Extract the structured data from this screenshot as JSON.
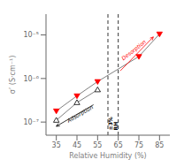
{
  "chart_data": {
    "type": "line",
    "xlabel": "Relative Humidity (%)",
    "ylabel": "σ’ (S·cm⁻¹)",
    "log": "y",
    "grid": false,
    "xlim": [
      30,
      90
    ],
    "ylim": [
      5e-08,
      3e-05
    ],
    "xticks": [
      35,
      45,
      55,
      65,
      75,
      85
    ],
    "yticks": [
      {
        "value": 1e-07,
        "label": "10⁻⁷"
      },
      {
        "value": 1e-06,
        "label": "10⁻⁶"
      },
      {
        "value": 1e-05,
        "label": "10⁻⁵"
      }
    ],
    "series": [
      {
        "x": [
          35,
          45,
          55
        ],
        "values": [
          1.1e-07,
          2.8e-07,
          5.5e-07
        ],
        "color": "black",
        "marker": "triangle-up-open"
      },
      {
        "x": [
          35,
          45,
          55,
          75,
          85
        ],
        "values": [
          1.8e-07,
          4e-07,
          8.5e-07,
          3.2e-06,
          1.05e-05
        ],
        "color": "red",
        "marker": "triangle-down"
      }
    ],
    "vlines": [
      60,
      65
    ],
    "annotations": [
      {
        "text": "±3%\nRH",
        "color": "black"
      },
      {
        "text": "Adsorption",
        "color": "black"
      },
      {
        "text": "Desorption",
        "color": "red"
      }
    ]
  }
}
